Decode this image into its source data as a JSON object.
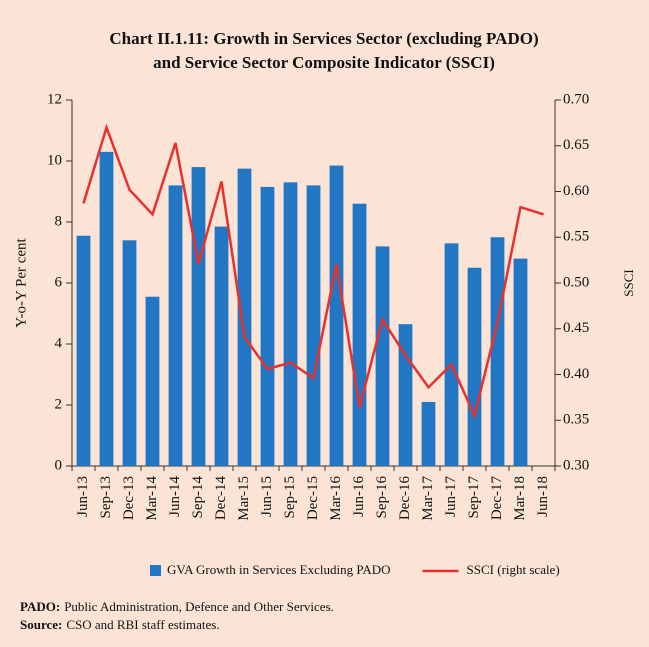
{
  "chart_data": {
    "type": "bar-line",
    "title": [
      "Chart II.1.11: Growth in Services Sector (excluding PADO)",
      "and Service Sector Composite Indicator (SSCI)"
    ],
    "ylabel": "Y-o-Y Per cent",
    "y2label": "SSCI",
    "categories": [
      "Jun-13",
      "Sep-13",
      "Dec-13",
      "Mar-14",
      "Jun-14",
      "Sep-14",
      "Dec-14",
      "Mar-15",
      "Jun-15",
      "Sep-15",
      "Dec-15",
      "Mar-16",
      "Jun-16",
      "Sep-16",
      "Dec-16",
      "Mar-17",
      "Jun-17",
      "Sep-17",
      "Dec-17",
      "Mar-18",
      "Jun-18"
    ],
    "series": [
      {
        "name": "GVA Growth in Services Excluding PADO",
        "type": "bar",
        "color": "#2277c5",
        "values": [
          7.55,
          10.3,
          7.4,
          5.55,
          9.2,
          9.8,
          7.85,
          9.75,
          9.15,
          9.3,
          9.2,
          9.85,
          8.6,
          7.2,
          4.65,
          2.1,
          7.3,
          6.5,
          7.5,
          6.8,
          null
        ]
      },
      {
        "name": "SSCI (right scale)",
        "type": "line",
        "axis": "y2",
        "color": "#e8312f",
        "values": [
          0.587,
          0.67,
          0.602,
          0.575,
          0.653,
          0.521,
          0.611,
          0.441,
          0.406,
          0.413,
          0.396,
          0.521,
          0.364,
          0.46,
          0.421,
          0.386,
          0.411,
          0.355,
          0.457,
          0.583,
          0.575
        ]
      }
    ],
    "ylim": [
      0,
      12
    ],
    "yticks": [
      0,
      2,
      4,
      6,
      8,
      10,
      12
    ],
    "y2lim": [
      0.3,
      0.7
    ],
    "y2ticks": [
      {
        "value": 0.3,
        "label": "0.30"
      },
      {
        "value": 0.35,
        "label": "0.35"
      },
      {
        "value": 0.4,
        "label": "0.40"
      },
      {
        "value": 0.45,
        "label": "0.45"
      },
      {
        "value": 0.5,
        "label": "0.50"
      },
      {
        "value": 0.55,
        "label": "0.55"
      },
      {
        "value": 0.6,
        "label": "0.60"
      },
      {
        "value": 0.65,
        "label": "0.65"
      },
      {
        "value": 0.7,
        "label": "0.70"
      }
    ],
    "notes": [
      {
        "label": "PADO:",
        "text": "Public Administration, Defence and Other Services."
      },
      {
        "label": "Source:",
        "text": "CSO and RBI staff estimates."
      }
    ]
  }
}
